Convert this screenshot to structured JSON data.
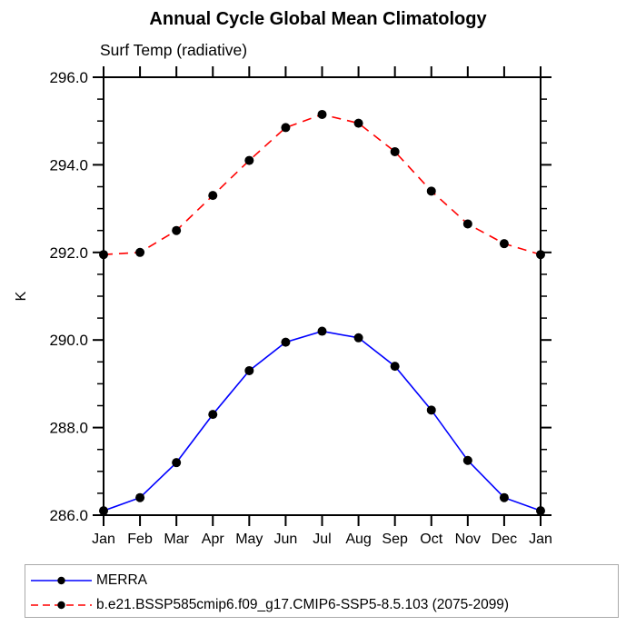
{
  "title": "Annual Cycle Global Mean Climatology",
  "subtitle": "Surf Temp (radiative)",
  "chart_data": {
    "type": "line",
    "title": "Annual Cycle Global Mean Climatology",
    "subtitle": "Surf Temp (radiative)",
    "xlabel": "",
    "ylabel": "K",
    "ylim": [
      286.0,
      296.0
    ],
    "ytick_step": 2.0,
    "yminor_step": 0.5,
    "ytick_labels": [
      "286.0",
      "288.0",
      "290.0",
      "292.0",
      "294.0",
      "296.0"
    ],
    "categories": [
      "Jan",
      "Feb",
      "Mar",
      "Apr",
      "May",
      "Jun",
      "Jul",
      "Aug",
      "Sep",
      "Oct",
      "Nov",
      "Dec",
      "Jan"
    ],
    "grid": false,
    "legend_position": "bottom-left",
    "marker": {
      "shape": "filled-circle",
      "color": "#000000",
      "radius": 5
    },
    "series": [
      {
        "name": "MERRA",
        "color": "#0000ff",
        "line_style": "solid",
        "values": [
          286.1,
          286.4,
          287.2,
          288.3,
          289.3,
          289.95,
          290.2,
          290.05,
          289.4,
          288.4,
          287.25,
          286.4,
          286.1
        ]
      },
      {
        "name": "b.e21.BSSP585cmip6.f09_g17.CMIP6-SSP5-8.5.103 (2075-2099)",
        "color": "#ff0000",
        "line_style": "dashed",
        "values": [
          291.95,
          292.0,
          292.5,
          293.3,
          294.1,
          294.85,
          295.15,
          294.95,
          294.3,
          293.4,
          292.65,
          292.2,
          291.95
        ]
      }
    ],
    "axis_color": "#000000",
    "legend_border_color": "#a9a9a9"
  }
}
